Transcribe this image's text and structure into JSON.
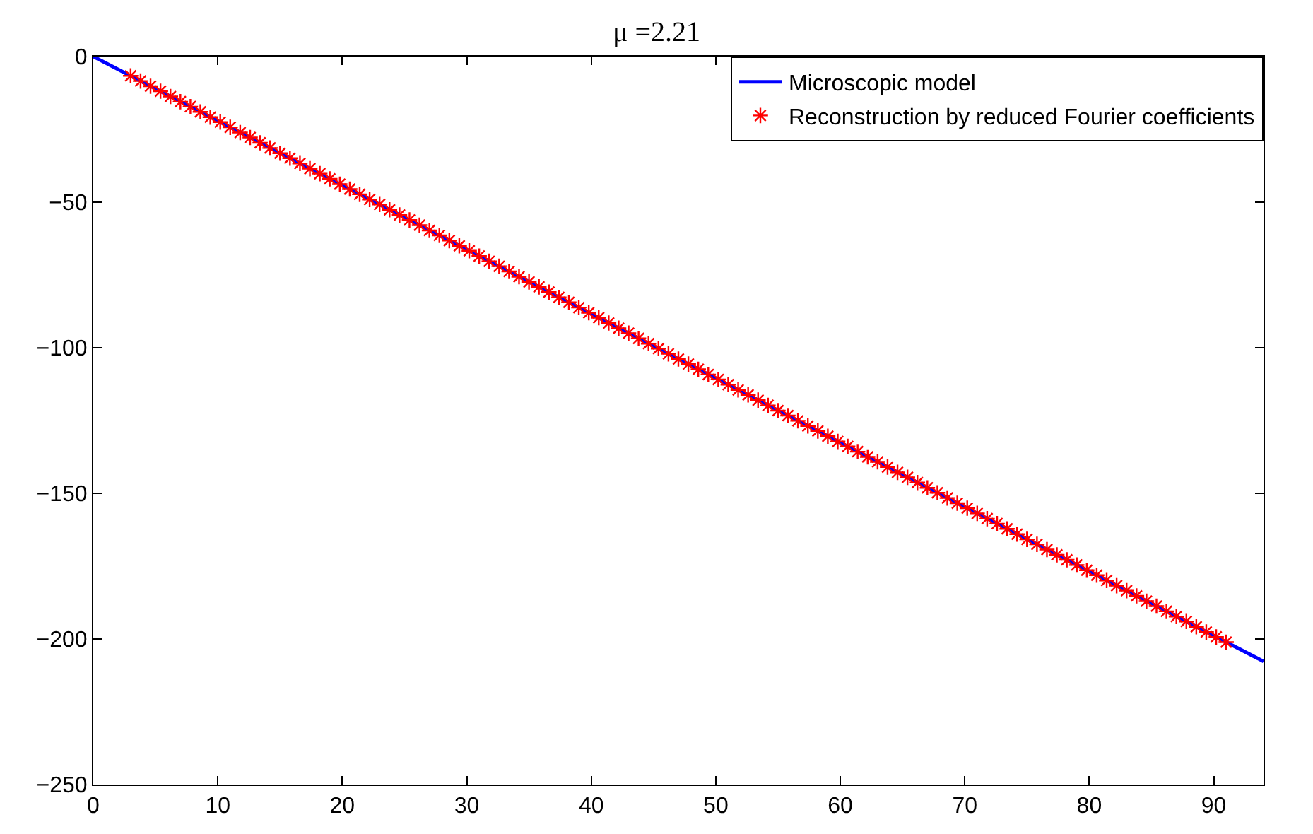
{
  "chart_data": {
    "type": "line",
    "title": "μ =2.21",
    "xlim": [
      0,
      94
    ],
    "ylim": [
      -250,
      0
    ],
    "xticks": [
      0,
      10,
      20,
      30,
      40,
      50,
      60,
      70,
      80,
      90
    ],
    "yticks": [
      {
        "value": -250,
        "label": "−250"
      },
      {
        "value": -200,
        "label": "−200"
      },
      {
        "value": -150,
        "label": "−150"
      },
      {
        "value": -100,
        "label": "−100"
      },
      {
        "value": -50,
        "label": "−50"
      },
      0
    ],
    "legend": "top right",
    "series": [
      {
        "name": "Microscopic model",
        "marker": "none",
        "line_style": "solid",
        "color": "#0000ff",
        "x": [
          0,
          94
        ],
        "values": [
          0,
          -207.7
        ]
      },
      {
        "name": "Reconstruction by reduced Fourier coefficients",
        "type": "scatter",
        "marker": "cross",
        "color": "#ff0000",
        "x": [
          3.0,
          3.8,
          4.6,
          5.4,
          6.2,
          7.0,
          7.8,
          8.6,
          9.4,
          10.2,
          11.0,
          11.8,
          12.6,
          13.4,
          14.2,
          15.0,
          15.8,
          16.6,
          17.4,
          18.2,
          19.0,
          19.8,
          20.6,
          21.4,
          22.2,
          23.0,
          23.8,
          24.6,
          25.4,
          26.2,
          27.0,
          27.8,
          28.6,
          29.4,
          30.2,
          31.0,
          31.8,
          32.6,
          33.4,
          34.2,
          35.0,
          35.8,
          36.6,
          37.4,
          38.2,
          39.0,
          39.8,
          40.6,
          41.4,
          42.2,
          43.0,
          43.8,
          44.6,
          45.4,
          46.2,
          47.0,
          47.8,
          48.6,
          49.4,
          50.2,
          51.0,
          51.8,
          52.6,
          53.4,
          54.2,
          55.0,
          55.8,
          56.6,
          57.4,
          58.2,
          59.0,
          59.8,
          60.6,
          61.4,
          62.2,
          63.0,
          63.8,
          64.6,
          65.4,
          66.2,
          67.0,
          67.8,
          68.6,
          69.4,
          70.2,
          71.0,
          71.8,
          72.6,
          73.4,
          74.2,
          75.0,
          75.8,
          76.6,
          77.4,
          78.2,
          79.0,
          79.8,
          80.6,
          81.4,
          82.2,
          83.0,
          83.8,
          84.6,
          85.4,
          86.2,
          87.0,
          87.8,
          88.6,
          89.4,
          90.2,
          91.0
        ],
        "values": [
          -6.6,
          -8.4,
          -10.2,
          -11.9,
          -13.7,
          -15.5,
          -17.2,
          -19.0,
          -20.8,
          -22.5,
          -24.3,
          -26.1,
          -27.8,
          -29.6,
          -31.4,
          -33.2,
          -34.9,
          -36.7,
          -38.5,
          -40.2,
          -42.0,
          -43.8,
          -45.5,
          -47.3,
          -49.1,
          -50.8,
          -52.6,
          -54.4,
          -56.1,
          -57.9,
          -59.7,
          -61.4,
          -63.2,
          -65.0,
          -66.7,
          -68.5,
          -70.3,
          -72.0,
          -73.8,
          -75.6,
          -77.4,
          -79.1,
          -80.9,
          -82.7,
          -84.4,
          -86.2,
          -88.0,
          -89.7,
          -91.5,
          -93.3,
          -95.0,
          -96.8,
          -98.6,
          -100.3,
          -102.1,
          -103.9,
          -105.6,
          -107.4,
          -109.2,
          -110.9,
          -112.7,
          -114.5,
          -116.2,
          -118.0,
          -119.8,
          -121.6,
          -123.3,
          -125.1,
          -126.9,
          -128.6,
          -130.4,
          -132.2,
          -133.9,
          -135.7,
          -137.5,
          -139.2,
          -141.0,
          -142.8,
          -144.5,
          -146.3,
          -148.1,
          -149.8,
          -151.6,
          -153.4,
          -155.1,
          -156.9,
          -158.7,
          -160.4,
          -162.2,
          -164.0,
          -165.8,
          -167.5,
          -169.3,
          -171.1,
          -172.8,
          -174.6,
          -176.4,
          -178.1,
          -179.9,
          -181.7,
          -183.4,
          -185.2,
          -187.0,
          -188.7,
          -190.5,
          -192.3,
          -194.0,
          -195.8,
          -197.6,
          -199.3,
          -201.1
        ]
      }
    ]
  }
}
